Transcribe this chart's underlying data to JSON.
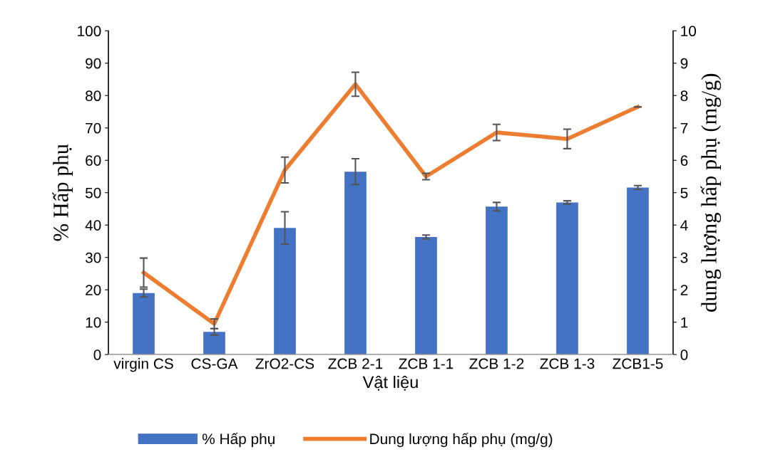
{
  "chart_data": {
    "type": "bar",
    "xlabel": "Vật liệu",
    "ylabel": "% Hấp phụ",
    "y2label": "dung lượng hấp phụ (mg/g)",
    "categories": [
      "virgin CS",
      "CS-GA",
      "ZrO2-CS",
      "ZCB 2-1",
      "ZCB 1-1",
      "ZCB 1-2",
      "ZCB 1-3",
      "ZCB1-5"
    ],
    "series": [
      {
        "name": "% Hấp phụ",
        "color": "#4472c4",
        "values": [
          19,
          7,
          39.1,
          56.5,
          36.3,
          45.7,
          47,
          51.6
        ],
        "errors": [
          1.2,
          1,
          5,
          4,
          0.6,
          1.3,
          0.5,
          0.6
        ]
      },
      {
        "name": "Dung lượng hấp phụ (mg/g)",
        "type": "line",
        "axis": "y2",
        "color": "#ed7d31",
        "values": [
          2.53,
          0.95,
          5.7,
          8.35,
          5.5,
          6.86,
          6.66,
          7.65
        ],
        "errors": [
          0.45,
          0.15,
          0.4,
          0.37,
          0.1,
          0.25,
          0.3,
          null
        ]
      }
    ],
    "ylim": [
      0,
      100
    ],
    "yticks": [
      0,
      10,
      20,
      30,
      40,
      50,
      60,
      70,
      80,
      90,
      100
    ],
    "y2lim": [
      0,
      10
    ],
    "y2ticks": [
      0,
      1,
      2,
      3,
      4,
      5,
      6,
      7,
      8,
      9,
      10
    ],
    "grid": false,
    "legend": "bottom",
    "marker": "none",
    "line_style": "solid"
  }
}
